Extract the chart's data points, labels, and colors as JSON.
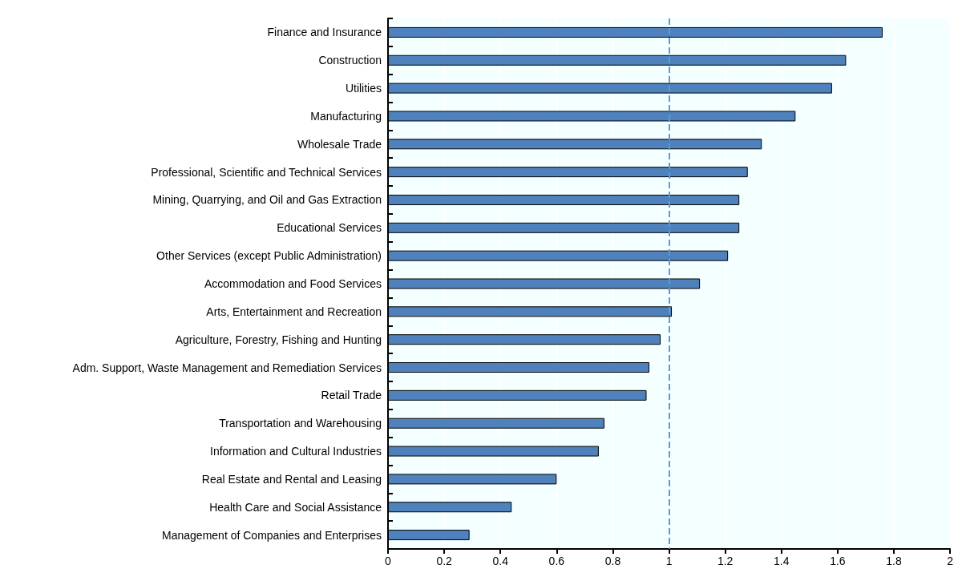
{
  "chart_data": {
    "type": "bar",
    "orientation": "horizontal",
    "categories": [
      "Finance and Insurance",
      "Construction",
      "Utilities",
      "Manufacturing",
      "Wholesale Trade",
      "Professional, Scientific and Technical Services",
      "Mining, Quarrying, and Oil and Gas Extraction",
      "Educational Services",
      "Other Services (except Public Administration)",
      "Accommodation and Food Services",
      "Arts, Entertainment and Recreation",
      "Agriculture, Forestry, Fishing and Hunting",
      "Adm. Support, Waste Management and Remediation Services",
      "Retail Trade",
      "Transportation and Warehousing",
      "Information and Cultural Industries",
      "Real Estate and Rental and Leasing",
      "Health Care and Social Assistance",
      "Management of Companies and Enterprises"
    ],
    "values": [
      1.76,
      1.63,
      1.58,
      1.45,
      1.33,
      1.28,
      1.25,
      1.25,
      1.21,
      1.11,
      1.01,
      0.97,
      0.93,
      0.92,
      0.77,
      0.75,
      0.6,
      0.44,
      0.29
    ],
    "color": "#4f81bd",
    "xlim": [
      0,
      2
    ],
    "xticks": [
      0,
      0.2,
      0.4,
      0.6,
      0.8,
      1,
      1.2,
      1.4,
      1.6,
      1.8,
      2
    ],
    "grid": "x",
    "ref_lines": [
      {
        "axis": "x",
        "value": 1,
        "color": "#5b9bd5",
        "line_style": "dashed"
      }
    ]
  }
}
